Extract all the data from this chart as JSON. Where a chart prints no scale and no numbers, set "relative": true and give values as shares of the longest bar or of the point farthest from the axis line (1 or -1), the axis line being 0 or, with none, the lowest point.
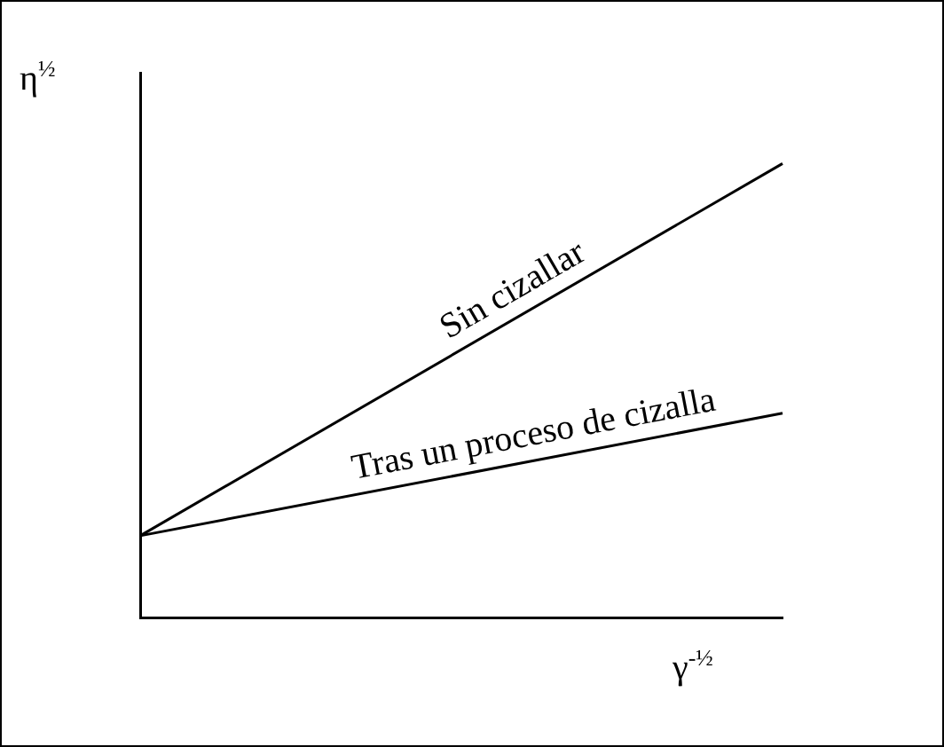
{
  "chart_data": {
    "type": "line",
    "relative": true,
    "categories": [
      null,
      null
    ],
    "xlabel": "γ$^{-½}$",
    "ylabel": "η$^{½}$",
    "grid": false,
    "legend": false,
    "marker": "none",
    "line_style": "solid",
    "series": [
      {
        "name": "Sin cizallar",
        "color": "#000000",
        "values": [
          0.18,
          1
        ]
      },
      {
        "name": "Tras un proceso de cizalla",
        "color": "#000000",
        "values": [
          0.18,
          0.45
        ]
      }
    ]
  }
}
